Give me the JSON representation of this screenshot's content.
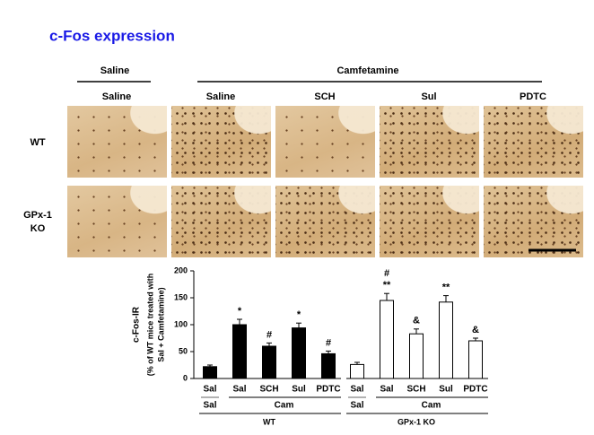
{
  "title": "c-Fos expression",
  "panel": {
    "treatments": [
      "Saline",
      "Camfetamine"
    ],
    "column_labels": [
      "Saline",
      "Saline",
      "SCH",
      "Sul",
      "PDTC"
    ],
    "row_labels": [
      "WT",
      "GPx-1",
      "KO"
    ]
  },
  "chart_data": {
    "type": "bar",
    "ylabel": "c-Fos-IR",
    "ylabel_sub": [
      "(% of WT mice treated with",
      "Sal + Camfetamine)"
    ],
    "categories": [
      "Sal",
      "Sal",
      "SCH",
      "Sul",
      "PDTC"
    ],
    "conditions": [
      "Sal",
      "Cam"
    ],
    "series": [
      {
        "name": "WT",
        "color": "#000000",
        "values": [
          22,
          100,
          60,
          94,
          46
        ],
        "errors": [
          3,
          10,
          6,
          9,
          5
        ],
        "annotations": [
          null,
          [
            "*"
          ],
          [
            "#"
          ],
          [
            "*"
          ],
          [
            "#"
          ]
        ]
      },
      {
        "name": "GPx-1 KO",
        "color": "#ffffff",
        "values": [
          26,
          145,
          83,
          142,
          70
        ],
        "errors": [
          4,
          13,
          9,
          12,
          5
        ],
        "annotations": [
          null,
          [
            "#",
            "**"
          ],
          [
            "&"
          ],
          [
            "**"
          ],
          [
            "&"
          ]
        ]
      }
    ],
    "ylim": [
      0,
      200
    ],
    "yticks": [
      0,
      50,
      100,
      150,
      200
    ]
  }
}
